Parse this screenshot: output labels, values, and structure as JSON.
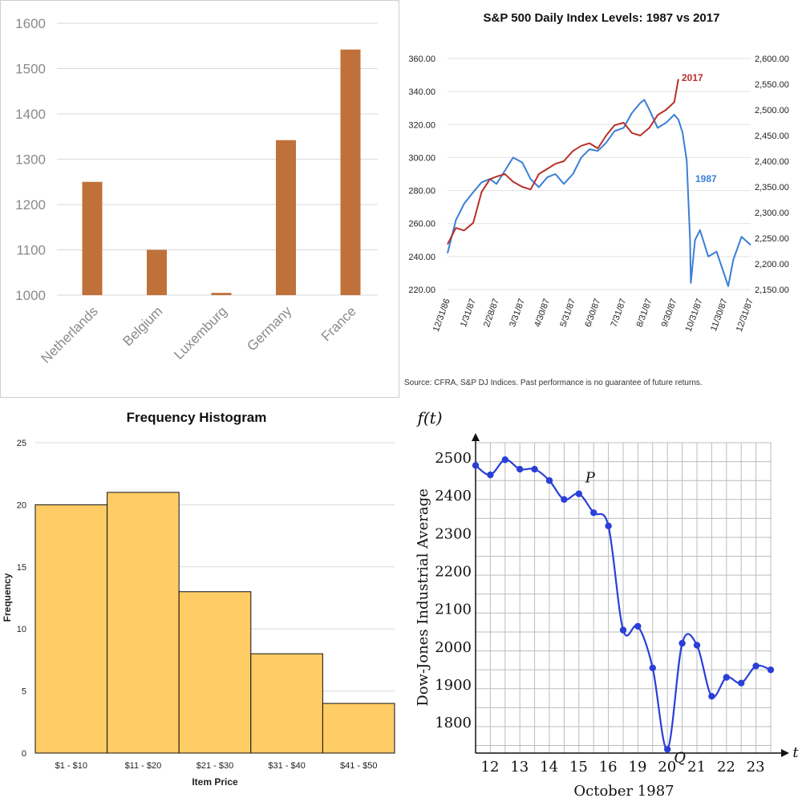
{
  "chart_data": [
    {
      "type": "bar",
      "title": "",
      "categories": [
        "Netherlands",
        "Belgium",
        "Luxemburg",
        "Germany",
        "France"
      ],
      "values": [
        1250,
        1100,
        1005,
        1342,
        1542
      ],
      "ylim": [
        1000,
        1600
      ],
      "yticks": [
        "1000",
        "1100",
        "1200",
        "1300",
        "1400",
        "1500",
        "1600"
      ],
      "grid": true,
      "color": "#c0713a"
    },
    {
      "type": "line",
      "title": "S&P 500 Daily Index Levels: 1987 vs 2017",
      "left_ylim": [
        220,
        360
      ],
      "right_ylim": [
        2150,
        2600
      ],
      "left_yticks": [
        "220.00",
        "240.00",
        "260.00",
        "280.00",
        "300.00",
        "320.00",
        "340.00",
        "360.00"
      ],
      "right_yticks": [
        "2,150.00",
        "2,200.00",
        "2,250.00",
        "2,300.00",
        "2,350.00",
        "2,400.00",
        "2,450.00",
        "2,500.00",
        "2,550.00",
        "2,600.00"
      ],
      "x_labels": [
        "12/31/86",
        "1/31/87",
        "2/28/87",
        "3/31/87",
        "4/30/87",
        "5/31/87",
        "6/30/87",
        "7/31/87",
        "8/31/87",
        "9/30/87",
        "10/31/87",
        "11/30/87",
        "12/31/87"
      ],
      "series": [
        {
          "name": "1987",
          "axis": "left",
          "color": "#3a7fd5",
          "x": [
            "12/31/86",
            "1/10/87",
            "1/20/87",
            "1/31/87",
            "2/10/87",
            "2/20/87",
            "2/28/87",
            "3/10/87",
            "3/20/87",
            "3/31/87",
            "4/10/87",
            "4/20/87",
            "4/30/87",
            "5/10/87",
            "5/20/87",
            "5/31/87",
            "6/10/87",
            "6/20/87",
            "6/30/87",
            "7/10/87",
            "7/20/87",
            "7/31/87",
            "8/10/87",
            "8/20/87",
            "8/25/87",
            "8/31/87",
            "9/10/87",
            "9/20/87",
            "9/30/87",
            "10/5/87",
            "10/10/87",
            "10/15/87",
            "10/19/87",
            "10/20/87",
            "10/25/87",
            "10/31/87",
            "11/10/87",
            "11/20/87",
            "11/30/87",
            "12/4/87",
            "12/10/87",
            "12/20/87",
            "12/31/87"
          ],
          "values": [
            242,
            262,
            272,
            279,
            285,
            287,
            284,
            292,
            300,
            297,
            287,
            282,
            288,
            290,
            284,
            290,
            300,
            305,
            304,
            309,
            316,
            318,
            327,
            333,
            335,
            329,
            318,
            321,
            326,
            323,
            315,
            298,
            250,
            224,
            250,
            256,
            240,
            243,
            228,
            222,
            238,
            252,
            247
          ]
        },
        {
          "name": "2017",
          "axis": "right",
          "color": "#b8302a",
          "x": [
            "12/31/86",
            "1/10/87",
            "1/20/87",
            "1/31/87",
            "2/10/87",
            "2/20/87",
            "2/28/87",
            "3/10/87",
            "3/20/87",
            "3/31/87",
            "4/10/87",
            "4/20/87",
            "4/30/87",
            "5/10/87",
            "5/20/87",
            "5/31/87",
            "6/10/87",
            "6/20/87",
            "6/30/87",
            "7/10/87",
            "7/20/87",
            "7/31/87",
            "8/10/87",
            "8/20/87",
            "8/31/87",
            "9/10/87",
            "9/20/87",
            "9/30/87",
            "10/5/87"
          ],
          "values": [
            2238,
            2270,
            2265,
            2280,
            2340,
            2365,
            2370,
            2375,
            2360,
            2350,
            2345,
            2375,
            2385,
            2395,
            2400,
            2420,
            2430,
            2435,
            2425,
            2450,
            2470,
            2475,
            2455,
            2450,
            2465,
            2490,
            2500,
            2515,
            2560
          ]
        }
      ],
      "series_labels": [
        "2017",
        "1987"
      ],
      "source": "Source: CFRA, S&P DJ Indices. Past performance is no guarantee of future returns."
    },
    {
      "type": "bar",
      "title": "Frequency Histogram",
      "xlabel": "Item Price",
      "ylabel": "Frequency",
      "categories": [
        "$1 - $10",
        "$11 - $20",
        "$21 - $30",
        "$31 - $40",
        "$41 - $50"
      ],
      "values": [
        20,
        21,
        13,
        8,
        4
      ],
      "ylim": [
        0,
        25
      ],
      "yticks": [
        "0",
        "5",
        "10",
        "15",
        "20",
        "25"
      ],
      "grid": true,
      "color": "#ffcc66"
    },
    {
      "type": "line",
      "title": "",
      "ylabel": "Dow-Jones Industrial Average",
      "xlabel": "October 1987",
      "ylabel_top": "f(t)",
      "xlabel_right": "t",
      "x_ticks": [
        "12",
        "13",
        "14",
        "15",
        "16",
        "19",
        "20",
        "21",
        "22",
        "23"
      ],
      "y_ticks": [
        "1800",
        "1900",
        "2000",
        "2100",
        "2200",
        "2300",
        "2400",
        "2500"
      ],
      "ylim": [
        1720,
        2540
      ],
      "x": [
        0,
        0.5,
        1,
        1.5,
        2,
        2.5,
        3,
        3.5,
        4,
        4.5,
        5,
        5.5,
        6,
        6.5,
        7,
        7.5,
        8,
        8.5,
        9,
        9.5,
        10
      ],
      "values": [
        2480,
        2455,
        2495,
        2470,
        2470,
        2440,
        2390,
        2405,
        2355,
        2320,
        2045,
        2055,
        1945,
        1730,
        2010,
        2005,
        1870,
        1920,
        1905,
        1950,
        1940
      ],
      "point_labels": [
        {
          "text": "P",
          "index": 7
        },
        {
          "text": "Q",
          "index": 13
        }
      ],
      "grid": true,
      "color": "#2a3fd8"
    }
  ]
}
